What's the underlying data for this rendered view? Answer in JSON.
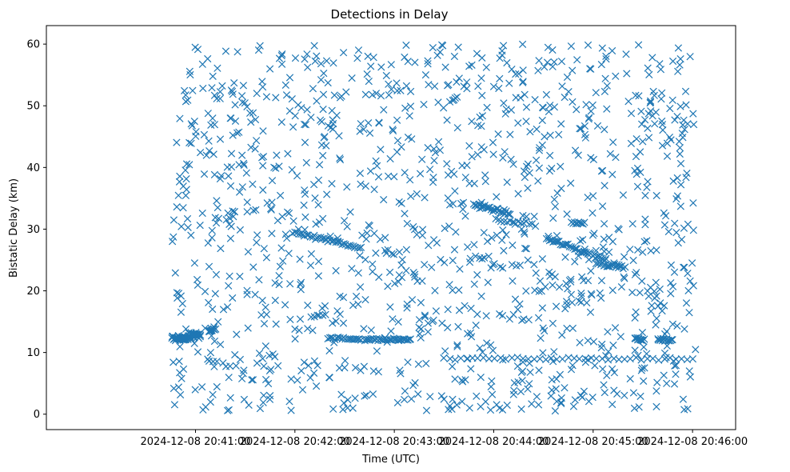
{
  "chart_data": {
    "type": "scatter",
    "title": "Detections in Delay",
    "xlabel": "Time (UTC)",
    "ylabel": "Bistatic Delay (km)",
    "marker": "x",
    "color": "#1f77b4",
    "xlim_seconds": [
      -90,
      326
    ],
    "ylim": [
      -2.5,
      63
    ],
    "x_ticks": [
      {
        "t": 0,
        "label": "2024-12-08 20:41:00"
      },
      {
        "t": 60,
        "label": "2024-12-08 20:42:00"
      },
      {
        "t": 120,
        "label": "2024-12-08 20:43:00"
      },
      {
        "t": 180,
        "label": "2024-12-08 20:44:00"
      },
      {
        "t": 240,
        "label": "2024-12-08 20:45:00"
      },
      {
        "t": 300,
        "label": "2024-12-08 20:46:00"
      }
    ],
    "y_ticks": [
      0,
      10,
      20,
      30,
      40,
      50,
      60
    ],
    "x_range_seconds": [
      -14,
      302
    ],
    "y_range_noise": [
      0.5,
      60
    ],
    "noise_points_estimate": 1250,
    "tracks": [
      {
        "t_start": -14,
        "t_end": -6,
        "y_start": 12.2,
        "y_end": 12.3,
        "count": 30,
        "jitter": 0.4
      },
      {
        "t_start": -8,
        "t_end": 3,
        "y_start": 12.1,
        "y_end": 13.0,
        "count": 40,
        "jitter": 0.6
      },
      {
        "t_start": 8,
        "t_end": 12,
        "y_start": 13.5,
        "y_end": 13.8,
        "count": 12,
        "jitter": 0.3
      },
      {
        "t_start": 60,
        "t_end": 100,
        "y_start": 29.5,
        "y_end": 27.0,
        "count": 35,
        "jitter": 0.3
      },
      {
        "t_start": 80,
        "t_end": 100,
        "y_start": 12.3,
        "y_end": 12.2,
        "count": 20,
        "jitter": 0.2
      },
      {
        "t_start": 102,
        "t_end": 130,
        "y_start": 12.1,
        "y_end": 12.1,
        "count": 35,
        "jitter": 0.2
      },
      {
        "t_start": 168,
        "t_end": 190,
        "y_start": 34.0,
        "y_end": 32.5,
        "count": 30,
        "jitter": 0.3
      },
      {
        "t_start": 181,
        "t_end": 205,
        "y_start": 31.5,
        "y_end": 30.7,
        "count": 15,
        "jitter": 0.3
      },
      {
        "t_start": 212,
        "t_end": 248,
        "y_start": 28.5,
        "y_end": 25.0,
        "count": 40,
        "jitter": 0.3
      },
      {
        "t_start": 227,
        "t_end": 235,
        "y_start": 31.0,
        "y_end": 31.0,
        "count": 10,
        "jitter": 0.2
      },
      {
        "t_start": 242,
        "t_end": 259,
        "y_start": 24.5,
        "y_end": 23.8,
        "count": 20,
        "jitter": 0.3
      },
      {
        "t_start": 150,
        "t_end": 300,
        "y_start": 9.0,
        "y_end": 9.0,
        "count": 45,
        "jitter": 0.2
      },
      {
        "t_start": 265,
        "t_end": 270,
        "y_start": 12.3,
        "y_end": 12.0,
        "count": 12,
        "jitter": 0.2
      },
      {
        "t_start": 279,
        "t_end": 288,
        "y_start": 12.1,
        "y_end": 12.0,
        "count": 15,
        "jitter": 0.2
      }
    ]
  }
}
